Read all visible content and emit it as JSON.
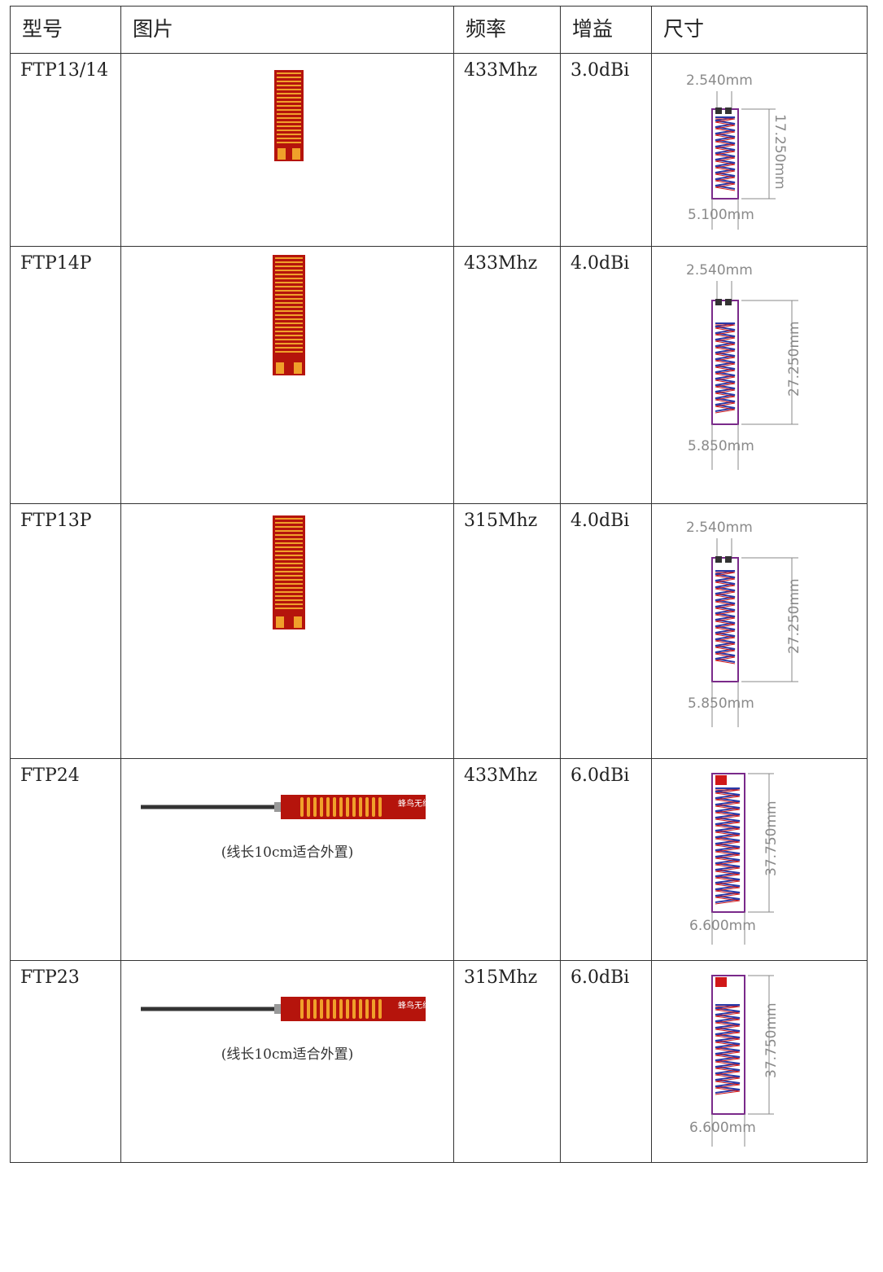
{
  "table": {
    "headers": [
      "型号",
      "图片",
      "频率",
      "增益",
      "尺寸"
    ],
    "rows": [
      {
        "model": "FTP13/14",
        "frequency": "433Mhz",
        "gain": "3.0dBi",
        "dims": {
          "top": "2.540mm",
          "side": "17.250mm",
          "bottom": "5.100mm"
        }
      },
      {
        "model": "FTP14P",
        "frequency": "433Mhz",
        "gain": "4.0dBi",
        "dims": {
          "top": "2.540mm",
          "side": "27.250mm",
          "bottom": "5.850mm"
        }
      },
      {
        "model": "FTP13P",
        "frequency": "315Mhz",
        "gain": "4.0dBi",
        "dims": {
          "top": "2.540mm",
          "side": "27.250mm",
          "bottom": "5.850mm"
        }
      },
      {
        "model": "FTP24",
        "frequency": "433Mhz",
        "gain": "6.0dBi",
        "caption": "(线长10cm适合外置)",
        "logo_text": "蜂鸟无线",
        "dims": {
          "side": "37.750mm",
          "bottom": "6.600mm"
        }
      },
      {
        "model": "FTP23",
        "frequency": "315Mhz",
        "gain": "6.0dBi",
        "caption": "(线长10cm适合外置)",
        "logo_text": "蜂鸟无线",
        "dims": {
          "side": "37.750mm",
          "bottom": "6.600mm"
        }
      }
    ]
  },
  "colors": {
    "pcb_red": "#b5140c",
    "trace_gold": "#f0a02a",
    "outline_purple": "#7a2a8a",
    "coil_blue": "#2a3aa8",
    "coil_red": "#d01818"
  },
  "icons": [
    "pcb-antenna-icon",
    "coil-drawing-icon",
    "cable-antenna-icon"
  ]
}
